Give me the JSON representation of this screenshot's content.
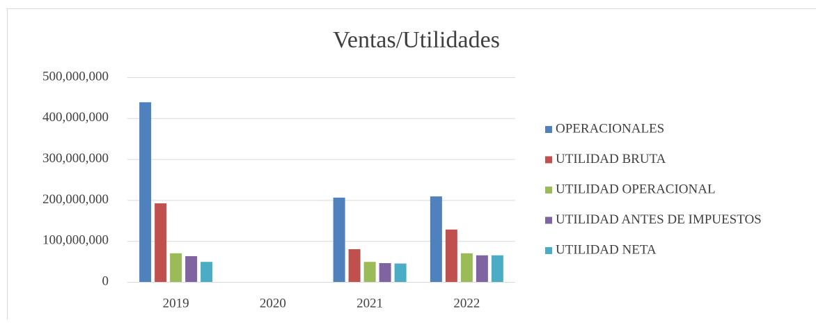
{
  "chart_data": {
    "type": "bar",
    "title": "Ventas/Utilidades",
    "categories": [
      "2019",
      "2020",
      "2021",
      "2022"
    ],
    "series": [
      {
        "name": "OPERACIONALES",
        "color": "#4f81bd",
        "values": [
          439000000,
          0,
          206000000,
          209000000
        ]
      },
      {
        "name": "UTILIDAD BRUTA",
        "color": "#c0504d",
        "values": [
          192000000,
          0,
          80000000,
          128000000
        ]
      },
      {
        "name": "UTILIDAD OPERACIONAL",
        "color": "#9bbb59",
        "values": [
          70000000,
          0,
          49000000,
          70000000
        ]
      },
      {
        "name": "UTILIDAD ANTES DE IMPUESTOS",
        "color": "#8064a2",
        "values": [
          63000000,
          0,
          46000000,
          65000000
        ]
      },
      {
        "name": "UTILIDAD NETA",
        "color": "#4bacc6",
        "values": [
          49000000,
          0,
          45000000,
          65000000
        ]
      }
    ],
    "ylim": [
      0,
      500000000
    ],
    "yticks": [
      0,
      {
        "value": 100000000,
        "label": "100,000,000"
      },
      {
        "value": 200000000,
        "label": "200,000,000"
      },
      {
        "value": 300000000,
        "label": "300,000,000"
      },
      {
        "value": 400000000,
        "label": "400,000,000"
      },
      {
        "value": 500000000,
        "label": "500,000,000"
      }
    ],
    "grid": true,
    "legend": "right"
  }
}
